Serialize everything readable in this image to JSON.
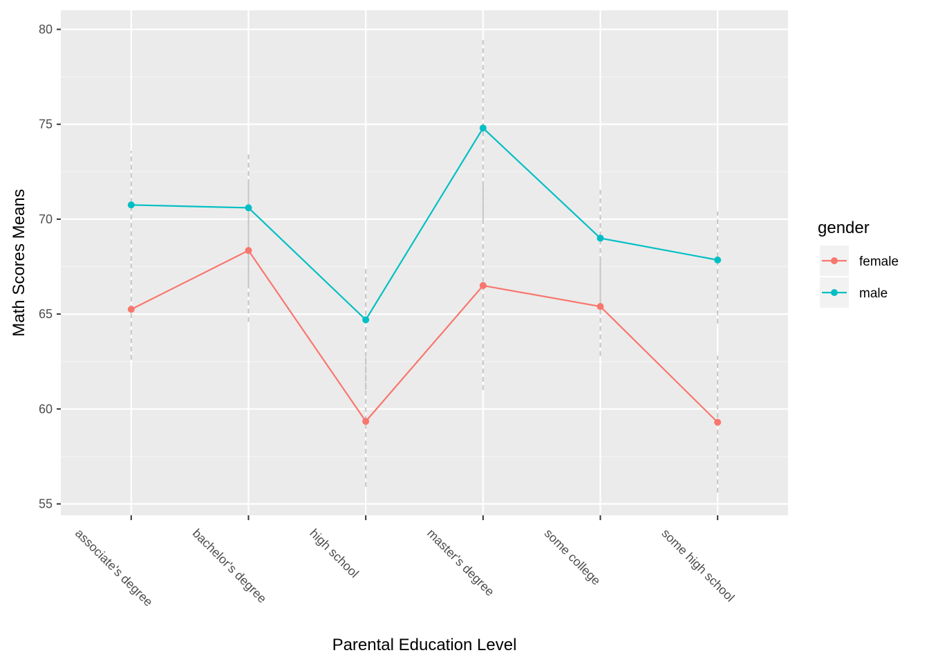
{
  "chart_data": {
    "type": "line",
    "xlabel": "Parental Education Level",
    "ylabel": "Math Scores Means",
    "categories": [
      "associate's degree",
      "bachelor's degree",
      "high school",
      "master's degree",
      "some college",
      "some high school"
    ],
    "ylim": [
      54.4,
      81.0
    ],
    "yticks": [
      55,
      60,
      65,
      70,
      75,
      80
    ],
    "grid": true,
    "legend": {
      "title": "gender",
      "position": "right"
    },
    "series": [
      {
        "name": "female",
        "color": "#F8766D",
        "values": [
          65.25,
          68.35,
          59.35,
          66.5,
          65.4,
          59.3
        ],
        "error_low": [
          62.6,
          64.6,
          55.9,
          61.0,
          62.8,
          55.6
        ],
        "error_high": [
          67.9,
          72.1,
          62.8,
          72.0,
          68.0,
          62.8
        ]
      },
      {
        "name": "male",
        "color": "#00BFC4",
        "values": [
          70.75,
          70.6,
          64.7,
          74.8,
          69.0,
          67.85
        ],
        "error_low": [
          67.8,
          66.6,
          61.0,
          70.0,
          65.6,
          64.5
        ],
        "error_high": [
          73.6,
          73.6,
          67.5,
          79.5,
          71.7,
          70.4
        ]
      }
    ]
  }
}
